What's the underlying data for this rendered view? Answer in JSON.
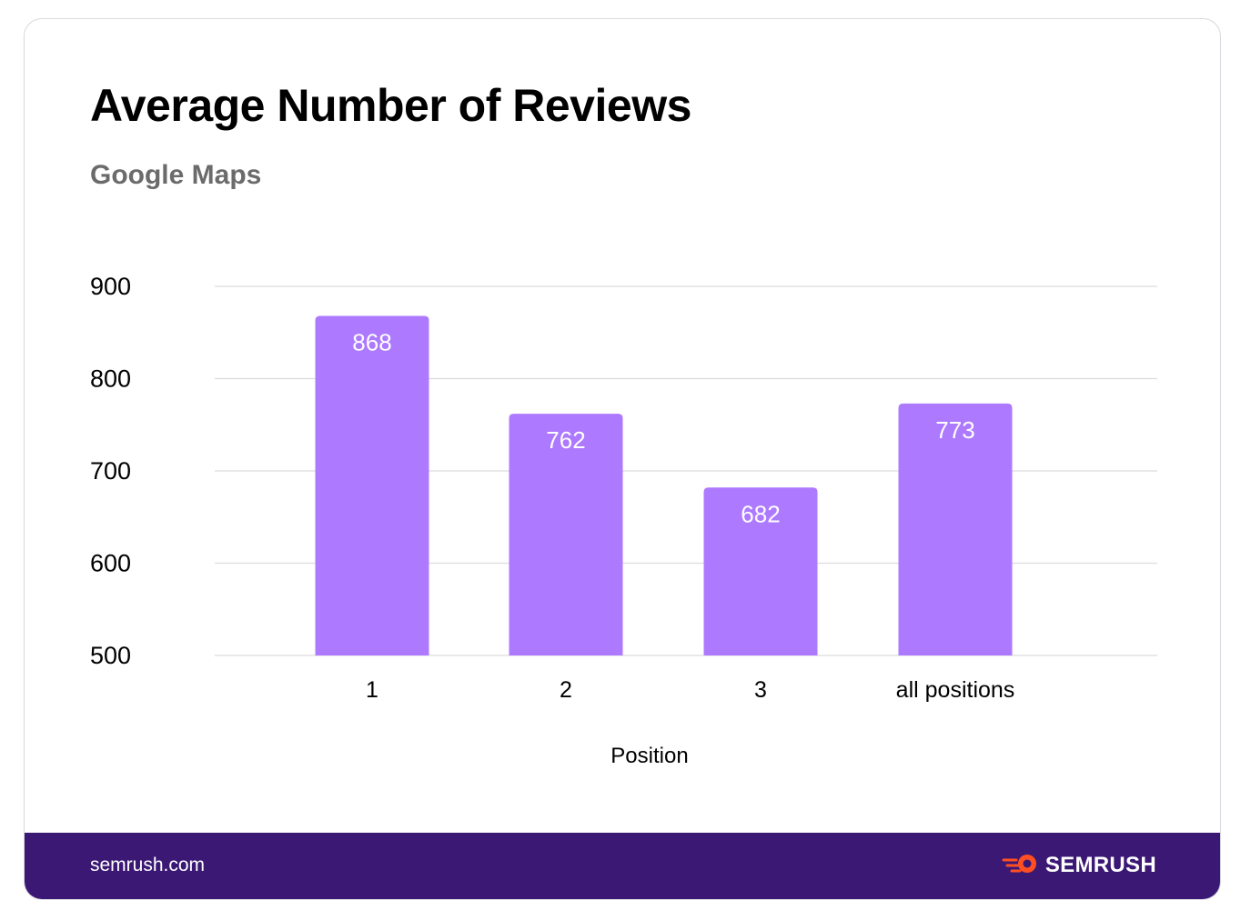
{
  "header": {
    "title": "Average Number of Reviews",
    "subtitle": "Google Maps"
  },
  "footer": {
    "site": "semrush.com",
    "brand": "SEMRUSH",
    "brand_icon": "semrush-flame-logo-icon"
  },
  "colors": {
    "bar": "#ad79ff",
    "footer": "#3a1874",
    "brand_accent": "#ff4f23",
    "grid": "#dcdcdc"
  },
  "chart_data": {
    "type": "bar",
    "title": "Average Number of Reviews",
    "subtitle": "Google Maps",
    "categories": [
      "1",
      "2",
      "3",
      "all positions"
    ],
    "values": [
      868,
      762,
      682,
      773
    ],
    "data_labels": [
      "868",
      "762",
      "682",
      "773"
    ],
    "xlabel": "Position",
    "ylabel": "",
    "ylim": [
      500,
      900
    ],
    "yticks": [
      "500",
      "600",
      "700",
      "800",
      "900"
    ],
    "grid": true,
    "legend": "none"
  }
}
